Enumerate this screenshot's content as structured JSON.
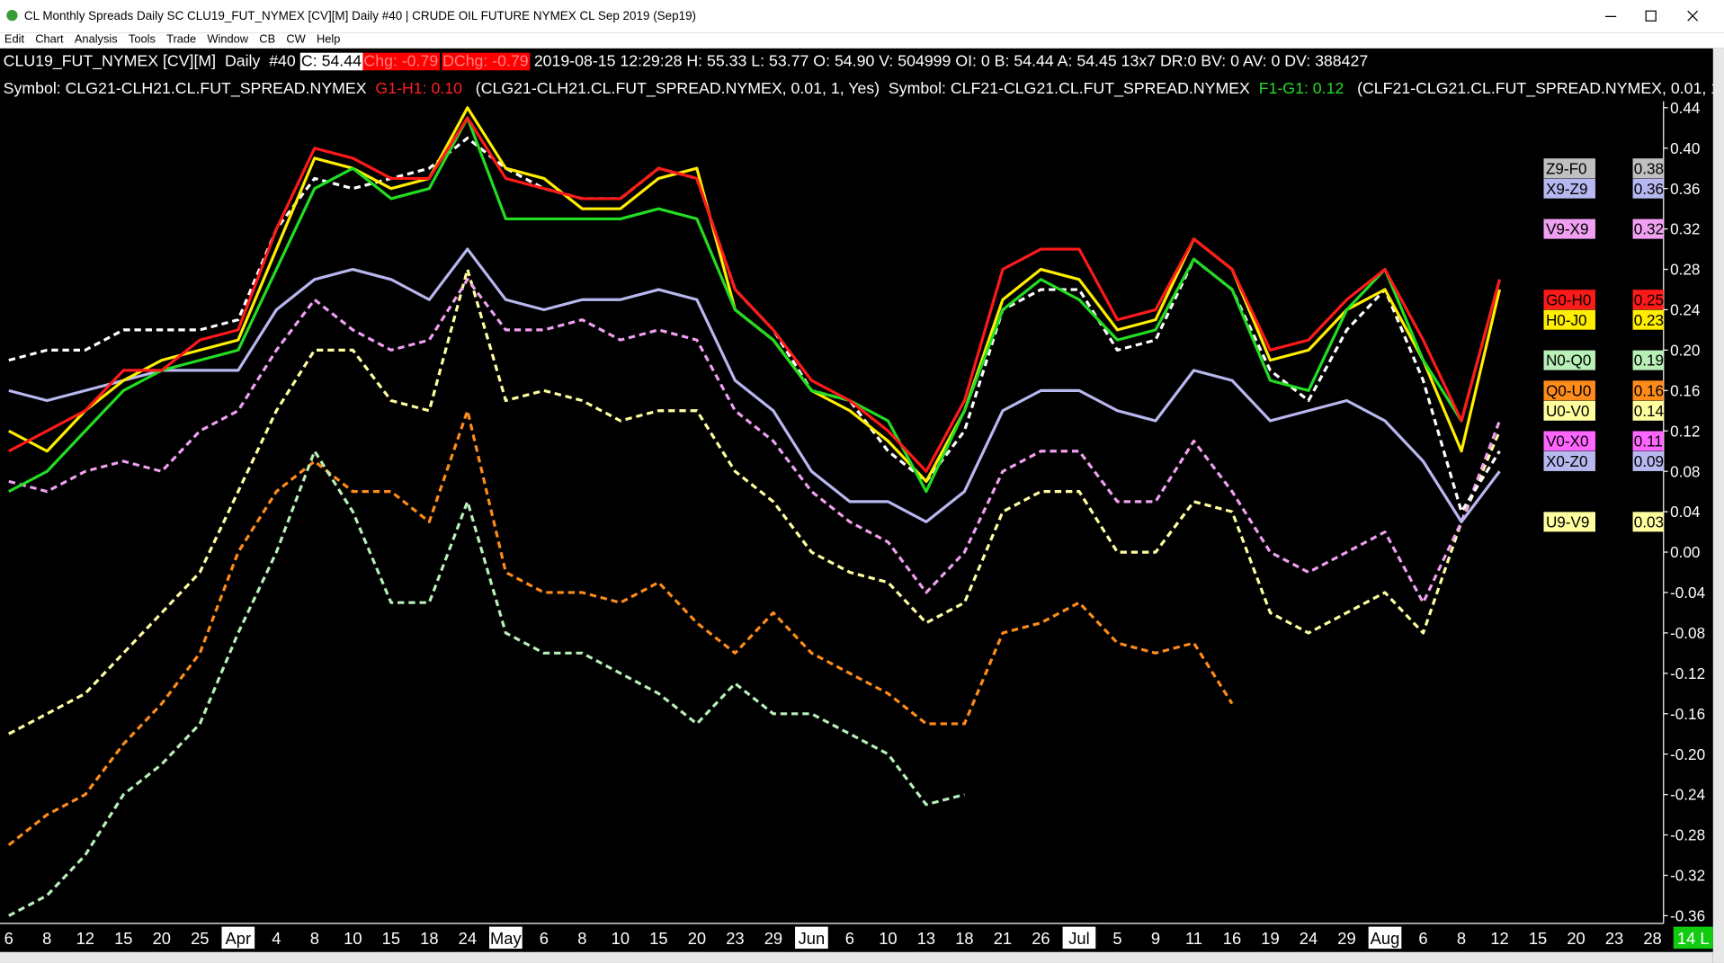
{
  "window": {
    "title": "CL Monthly Spreads Daily  SC CLU19_FUT_NYMEX [CV][M]  Daily  #40 | CRUDE OIL FUTURE NYMEX CL Sep 2019 (Sep19)"
  },
  "menu": [
    "Edit",
    "Chart",
    "Analysis",
    "Tools",
    "Trade",
    "Window",
    "CB",
    "CW",
    "Help"
  ],
  "info_bar": {
    "symbol": "CLU19_FUT_NYMEX [CV][M]  Daily  #40 ",
    "close": "C: 54.44",
    "change": "Chg: -0.79",
    "daily_change": "DChg: -0.79",
    "details": " 2019-08-15 12:29:28 H: 55.33 L: 53.77 O: 54.90 V: 504999 OI: 0 B: 54.44 A: 54.45 13x7 DR:0 BV: 0 AV: 0 DV: 388427"
  },
  "symbol_bar": {
    "symbol1": "Symbol: CLG21-CLH21.CL.FUT_SPREAD.NYMEX  ",
    "value1": "G1-H1: 0.10",
    "params1": "   (CLG21-CLH21.CL.FUT_SPREAD.NYMEX, 0.01, 1, Yes)  ",
    "symbol2": "Symbol: CLF21-CLG21.CL.FUT_SPREAD.NYMEX  ",
    "value2": "F1-G1: 0.12",
    "params2": "   (CLF21-CLG21.CL.FUT_SPREAD.NYMEX, 0.01, 1,"
  },
  "chart_data": {
    "type": "line",
    "categories": [
      "6",
      "8",
      "12",
      "15",
      "20",
      "25",
      "Apr",
      "4",
      "8",
      "10",
      "15",
      "18",
      "24",
      "May",
      "6",
      "8",
      "10",
      "15",
      "20",
      "23",
      "29",
      "Jun",
      "6",
      "10",
      "13",
      "18",
      "21",
      "26",
      "Jul",
      "5",
      "9",
      "11",
      "16",
      "19",
      "24",
      "29",
      "Aug",
      "6",
      "8",
      "12",
      "15",
      "20",
      "23",
      "28"
    ],
    "cursor_label": "14 L",
    "ylim": [
      -0.36,
      0.44
    ],
    "yticks": [
      {
        "value": 0.44,
        "label": "0.44"
      },
      {
        "value": 0.4,
        "label": "0.40"
      },
      {
        "value": 0.36,
        "label": "0.36"
      },
      {
        "value": 0.32,
        "label": "0.32"
      },
      {
        "value": 0.28,
        "label": "0.28"
      },
      {
        "value": 0.24,
        "label": "0.24"
      },
      {
        "value": 0.2,
        "label": "0.20"
      },
      {
        "value": 0.16,
        "label": "0.16"
      },
      {
        "value": 0.12,
        "label": "0.12"
      },
      {
        "value": 0.08,
        "label": "0.08"
      },
      {
        "value": 0.04,
        "label": "0.04"
      },
      {
        "value": 0.0,
        "label": "0.00"
      },
      {
        "value": -0.04,
        "label": "-0.04"
      },
      {
        "value": -0.08,
        "label": "-0.08"
      },
      {
        "value": -0.12,
        "label": "-0.12"
      },
      {
        "value": -0.16,
        "label": "-0.16"
      },
      {
        "value": -0.2,
        "label": "-0.20"
      },
      {
        "value": -0.24,
        "label": "-0.24"
      },
      {
        "value": -0.28,
        "label": "-0.28"
      },
      {
        "value": -0.32,
        "label": "-0.32"
      },
      {
        "value": -0.36,
        "label": "-0.36"
      }
    ],
    "series": [
      {
        "color": "#ffffa0",
        "dashed": true,
        "values": [
          -0.18,
          -0.16,
          -0.14,
          -0.1,
          -0.06,
          -0.02,
          0.06,
          0.14,
          0.2,
          0.2,
          0.15,
          0.14,
          0.28,
          0.15,
          0.16,
          0.15,
          0.13,
          0.14,
          0.14,
          0.08,
          0.05,
          0.0,
          -0.02,
          -0.03,
          -0.07,
          -0.05,
          0.04,
          0.06,
          0.06,
          0.0,
          0.0,
          0.05,
          0.04,
          -0.06,
          -0.08,
          -0.06,
          -0.04,
          -0.08,
          0.03,
          0.12,
          null,
          null,
          null,
          null
        ]
      },
      {
        "color": "#ff8c1a",
        "dashed": true,
        "values": [
          -0.29,
          -0.26,
          -0.24,
          -0.19,
          -0.15,
          -0.1,
          0.0,
          0.06,
          0.09,
          0.06,
          0.06,
          0.03,
          0.14,
          -0.02,
          -0.04,
          -0.04,
          -0.05,
          -0.03,
          -0.07,
          -0.1,
          -0.06,
          -0.1,
          -0.12,
          -0.14,
          -0.17,
          -0.17,
          -0.08,
          -0.07,
          -0.05,
          -0.09,
          -0.1,
          -0.09,
          -0.15,
          null,
          null,
          null,
          null,
          null,
          null,
          null,
          null,
          null,
          null,
          null
        ]
      },
      {
        "color": "#b8f0b8",
        "dashed": true,
        "values": [
          -0.36,
          -0.34,
          -0.3,
          -0.24,
          -0.21,
          -0.17,
          -0.08,
          0.0,
          0.1,
          0.04,
          -0.05,
          -0.05,
          0.05,
          -0.08,
          -0.1,
          -0.1,
          -0.12,
          -0.14,
          -0.17,
          -0.13,
          -0.16,
          -0.16,
          -0.18,
          -0.2,
          -0.25,
          -0.24,
          null,
          null,
          null,
          null,
          null,
          null,
          null,
          null,
          null,
          null,
          null,
          null,
          null,
          null,
          null,
          null,
          null,
          null
        ]
      },
      {
        "color": "#f0a0f0",
        "dashed": true,
        "values": [
          0.07,
          0.06,
          0.08,
          0.09,
          0.08,
          0.12,
          0.14,
          0.2,
          0.25,
          0.22,
          0.2,
          0.21,
          0.27,
          0.22,
          0.22,
          0.23,
          0.21,
          0.22,
          0.21,
          0.14,
          0.11,
          0.06,
          0.03,
          0.01,
          -0.04,
          0.0,
          0.08,
          0.1,
          0.1,
          0.05,
          0.05,
          0.11,
          0.06,
          0.0,
          -0.02,
          0.0,
          0.02,
          -0.05,
          0.03,
          0.13,
          null,
          null,
          null,
          null
        ]
      },
      {
        "color": "#b8b8f0",
        "dashed": false,
        "values": [
          0.16,
          0.15,
          0.16,
          0.17,
          0.18,
          0.18,
          0.18,
          0.24,
          0.27,
          0.28,
          0.27,
          0.25,
          0.3,
          0.25,
          0.24,
          0.25,
          0.25,
          0.26,
          0.25,
          0.17,
          0.14,
          0.08,
          0.05,
          0.05,
          0.03,
          0.06,
          0.14,
          0.16,
          0.16,
          0.14,
          0.13,
          0.18,
          0.17,
          0.13,
          0.14,
          0.15,
          0.13,
          0.09,
          0.03,
          0.08,
          null,
          null,
          null,
          null
        ]
      },
      {
        "color": "#ffffff",
        "dashed": true,
        "values": [
          0.19,
          0.2,
          0.2,
          0.22,
          0.22,
          0.22,
          0.23,
          0.32,
          0.37,
          0.36,
          0.37,
          0.38,
          0.41,
          0.38,
          0.36,
          0.35,
          0.35,
          0.38,
          0.37,
          0.26,
          0.22,
          0.16,
          0.15,
          0.1,
          0.07,
          0.12,
          0.24,
          0.26,
          0.26,
          0.2,
          0.21,
          0.29,
          0.26,
          0.18,
          0.15,
          0.22,
          0.26,
          0.17,
          0.04,
          0.1,
          null,
          null,
          null,
          null
        ]
      },
      {
        "color": "#ffee00",
        "dashed": false,
        "values": [
          0.12,
          0.1,
          0.14,
          0.17,
          0.19,
          0.2,
          0.21,
          0.3,
          0.39,
          0.38,
          0.36,
          0.37,
          0.44,
          0.38,
          0.37,
          0.34,
          0.34,
          0.37,
          0.38,
          0.24,
          0.21,
          0.16,
          0.14,
          0.11,
          0.07,
          0.14,
          0.25,
          0.28,
          0.27,
          0.22,
          0.23,
          0.31,
          0.28,
          0.19,
          0.2,
          0.24,
          0.26,
          0.19,
          0.1,
          0.26,
          null,
          null,
          null,
          null
        ]
      },
      {
        "color": "#22dd22",
        "dashed": false,
        "values": [
          0.06,
          0.08,
          0.12,
          0.16,
          0.18,
          0.19,
          0.2,
          0.28,
          0.36,
          0.38,
          0.35,
          0.36,
          0.43,
          0.33,
          0.33,
          0.33,
          0.33,
          0.34,
          0.33,
          0.24,
          0.21,
          0.16,
          0.15,
          0.13,
          0.06,
          0.14,
          0.24,
          0.27,
          0.25,
          0.21,
          0.22,
          0.29,
          0.26,
          0.17,
          0.16,
          0.24,
          0.28,
          0.19,
          0.13,
          0.27,
          null,
          null,
          null,
          null
        ]
      },
      {
        "color": "#ff1a1a",
        "dashed": false,
        "values": [
          0.1,
          0.12,
          0.14,
          0.18,
          0.18,
          0.21,
          0.22,
          0.32,
          0.4,
          0.39,
          0.37,
          0.37,
          0.43,
          0.37,
          0.36,
          0.35,
          0.35,
          0.38,
          0.37,
          0.26,
          0.22,
          0.17,
          0.15,
          0.12,
          0.08,
          0.15,
          0.28,
          0.3,
          0.3,
          0.23,
          0.24,
          0.31,
          0.28,
          0.2,
          0.21,
          0.25,
          0.28,
          0.21,
          0.13,
          0.27,
          null,
          null,
          null,
          null
        ]
      }
    ],
    "legend_items": [
      {
        "name": "Z9-F0",
        "value": 0.38,
        "color": "#c0c0c0"
      },
      {
        "name": "X9-Z9",
        "value": 0.36,
        "color": "#b8b8f0"
      },
      {
        "name": "V9-X9",
        "value": 0.32,
        "color": "#f0a0f0"
      },
      {
        "name": "G0-H0",
        "value": 0.25,
        "color": "#ff1a1a"
      },
      {
        "name": "H0-J0",
        "value": 0.23,
        "color": "#ffee00"
      },
      {
        "name": "N0-Q0",
        "value": 0.19,
        "color": "#b8f0b8"
      },
      {
        "name": "Q0-U0",
        "value": 0.16,
        "color": "#ff8c1a"
      },
      {
        "name": "U0-V0",
        "value": 0.14,
        "color": "#ffffa0"
      },
      {
        "name": "V0-X0",
        "value": 0.11,
        "color": "#ff66ff"
      },
      {
        "name": "X0-Z0",
        "value": 0.09,
        "color": "#b8b8f0"
      },
      {
        "name": "U9-V9",
        "value": 0.03,
        "color": "#ffffa0"
      }
    ]
  }
}
